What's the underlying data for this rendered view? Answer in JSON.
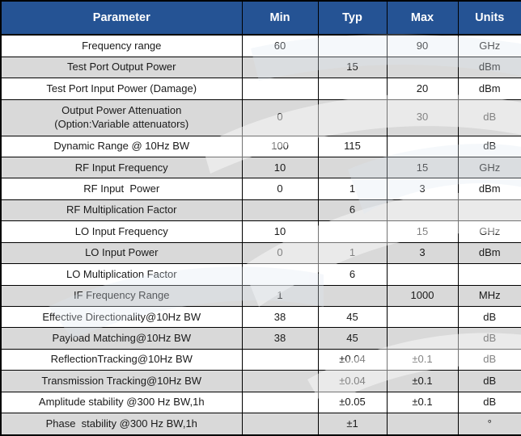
{
  "table": {
    "headers": [
      "Parameter",
      "Min",
      "Typ",
      "Max",
      "Units"
    ],
    "rows": [
      {
        "parameter": "Frequency range",
        "min": "60",
        "typ": "",
        "max": "90",
        "units": "GHz"
      },
      {
        "parameter": "Test Port Output Power",
        "min": "",
        "typ": "15",
        "max": "",
        "units": "dBm"
      },
      {
        "parameter": "Test Port Input Power (Damage)",
        "min": "",
        "typ": "",
        "max": "20",
        "units": "dBm"
      },
      {
        "parameter": "Output Power Attenuation\n(Option:Variable attenuators)",
        "min": "0",
        "typ": "",
        "max": "30",
        "units": "dB",
        "tall": true
      },
      {
        "parameter": "Dynamic Range @ 10Hz BW",
        "min": "100",
        "typ": "115",
        "max": "",
        "units": "dB"
      },
      {
        "parameter": "RF Input Frequency",
        "min": "10",
        "typ": "",
        "max": "15",
        "units": "GHz"
      },
      {
        "parameter": "RF Input  Power",
        "min": "0",
        "typ": "1",
        "max": "3",
        "units": "dBm"
      },
      {
        "parameter": "RF Multiplication Factor",
        "min": "",
        "typ": "6",
        "max": "",
        "units": ""
      },
      {
        "parameter": "LO Input Frequency",
        "min": "10",
        "typ": "",
        "max": "15",
        "units": "GHz"
      },
      {
        "parameter": "LO Input Power",
        "min": "0",
        "typ": "1",
        "max": "3",
        "units": "dBm"
      },
      {
        "parameter": "LO Multiplication Factor",
        "min": "",
        "typ": "6",
        "max": "",
        "units": ""
      },
      {
        "parameter": "IF Frequency Range",
        "min": "1",
        "typ": "",
        "max": "1000",
        "units": "MHz"
      },
      {
        "parameter": "Effective Directionality@10Hz BW",
        "min": "38",
        "typ": "45",
        "max": "",
        "units": "dB"
      },
      {
        "parameter": "Payload Matching@10Hz BW",
        "min": "38",
        "typ": "45",
        "max": "",
        "units": "dB"
      },
      {
        "parameter": "ReflectionTracking@10Hz BW",
        "min": "",
        "typ": "±0.04",
        "max": "±0.1",
        "units": "dB"
      },
      {
        "parameter": "Transmission Tracking@10Hz BW",
        "min": "",
        "typ": "±0.04",
        "max": "±0.1",
        "units": "dB"
      },
      {
        "parameter": "Amplitude stability @300 Hz BW,1h",
        "min": "",
        "typ": "±0.05",
        "max": "±0.1",
        "units": "dB"
      },
      {
        "parameter": "Phase  stability @300 Hz BW,1h",
        "min": "",
        "typ": "±1",
        "max": "",
        "units": "°"
      }
    ]
  },
  "colors": {
    "header_bg": "#255394",
    "header_text": "#FFFFFF",
    "row_bg": "#FFFFFF",
    "row_alt_bg": "#D9D9D9",
    "border": "#000000"
  }
}
